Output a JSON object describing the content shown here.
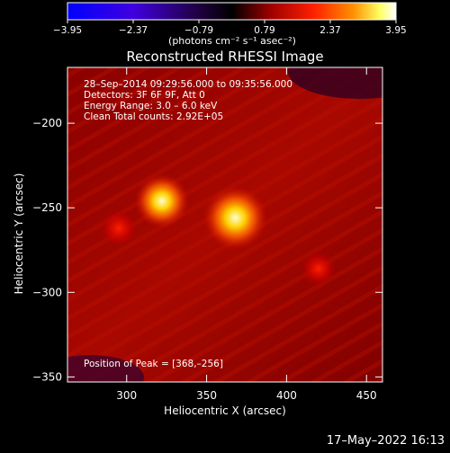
{
  "colorbar": {
    "tick_labels": [
      "−3.95",
      "−2.37",
      "−0.79",
      "0.79",
      "2.37",
      "3.95"
    ],
    "unit_label": "(photons cm⁻² s⁻¹ asec⁻²)",
    "range": [
      -3.95,
      3.95
    ]
  },
  "footer": {
    "timestamp": "17–May–2022 16:13"
  },
  "chart_data": {
    "type": "heatmap",
    "title": "Reconstructed RHESSI Image",
    "xlabel": "Heliocentric X (arcsec)",
    "ylabel": "Heliocentric Y (arcsec)",
    "xlim": [
      263,
      460
    ],
    "ylim": [
      -353,
      -167
    ],
    "x_ticks": [
      300,
      350,
      400,
      450
    ],
    "y_ticks": [
      -200,
      -250,
      -300,
      -350
    ],
    "annotations": [
      "28–Sep–2014 09:29:56.000 to 09:35:56.000",
      "Detectors: 3F 6F 9F, Att 0",
      "Energy Range: 3.0 – 6.0 keV",
      "Clean    Total counts: 2.92E+05"
    ],
    "peak_label": "Position of Peak = [368,–256]",
    "sources": [
      {
        "x": 368,
        "y": -256,
        "level": 1.0
      },
      {
        "x": 322,
        "y": -246,
        "level": 0.75
      },
      {
        "x": 295,
        "y": -262,
        "level": 0.35
      },
      {
        "x": 420,
        "y": -286,
        "level": 0.3
      }
    ],
    "colormap": [
      "#0000ff",
      "#5010d0",
      "#000000",
      "#a00000",
      "#ff3000",
      "#ffa000",
      "#ffff80",
      "#ffffff"
    ]
  }
}
